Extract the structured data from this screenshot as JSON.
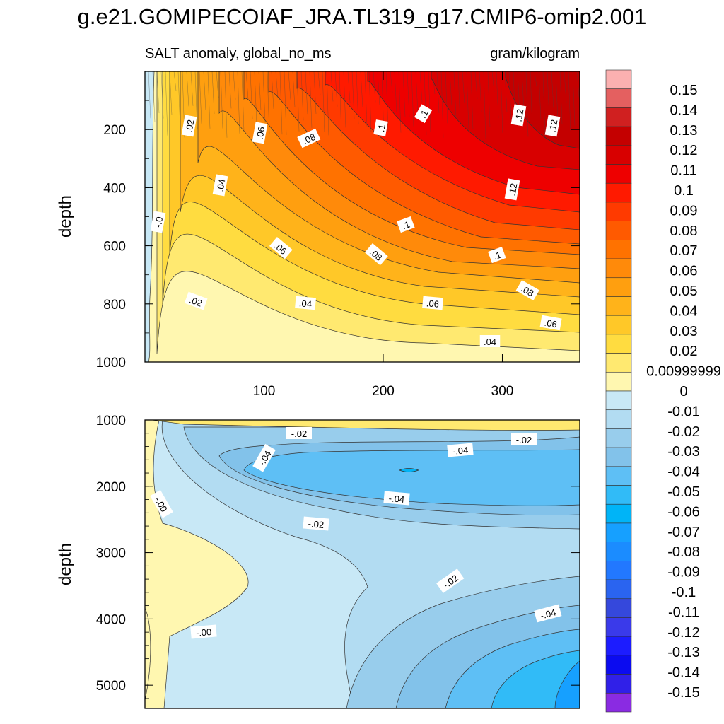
{
  "title": "g.e21.GOMIPECOIAF_JRA.TL319_g17.CMIP6-omip2.001",
  "subtitle_left": "SALT anomaly, global_no_ms",
  "subtitle_right": "gram/kilogram",
  "colors": {
    "positive": [
      "#fff7b0",
      "#ffe970",
      "#ffdc40",
      "#ffc828",
      "#ffb31a",
      "#ff9f0f",
      "#ff8a0a",
      "#ff7200",
      "#ff5a00",
      "#ff3a00",
      "#ff1a00",
      "#ee0000",
      "#d80000",
      "#c40000",
      "#d02020",
      "#e46060",
      "#fbb0b0"
    ],
    "negative": [
      "#c8e8f6",
      "#b2dcf2",
      "#98cdec",
      "#82c2ea",
      "#5ebff5",
      "#31bbf7",
      "#00b4f7",
      "#16a0ff",
      "#1b8cff",
      "#2278ff",
      "#2a64f0",
      "#3548dc",
      "#3a3aea",
      "#1c1cff",
      "#0b0bf0",
      "#3020e8",
      "#6020e0",
      "#8a2be2"
    ]
  },
  "chart_data": [
    {
      "type": "contour",
      "panel": "upper",
      "ylabel": "depth",
      "xlim": [
        0,
        365
      ],
      "ylim": [
        1000,
        0
      ],
      "xticks": [
        "100",
        "200",
        "300"
      ],
      "yticks": [
        "200",
        "400",
        "600",
        "800",
        "1000"
      ],
      "contour_labels": [
        ".02",
        ".06",
        ".08",
        ".1",
        ".1",
        ".12",
        ".12",
        ".04",
        ".12",
        "-.0",
        ".1",
        ".06",
        ".08",
        ".1",
        ".02",
        ".04",
        ".06",
        ".08",
        ".06",
        ".04"
      ]
    },
    {
      "type": "contour",
      "panel": "lower",
      "ylabel": "depth",
      "xlim": [
        0,
        365
      ],
      "ylim": [
        5350,
        1000
      ],
      "yticks": [
        "1000",
        "2000",
        "3000",
        "4000",
        "5000"
      ],
      "contour_labels": [
        "-.02",
        "-.04",
        "-.04",
        "-.02",
        "-.00",
        "-.04",
        "-.02",
        "-.02",
        "-.04",
        "-.00"
      ]
    }
  ],
  "colorbar": {
    "labels": [
      "0.15",
      "0.14",
      "0.13",
      "0.12",
      "0.11",
      "0.1",
      "0.09",
      "0.08",
      "0.07",
      "0.06",
      "0.05",
      "0.04",
      "0.03",
      "0.02",
      "0.00999999",
      "0",
      "-0.01",
      "-0.02",
      "-0.03",
      "-0.04",
      "-0.05",
      "-0.06",
      "-0.07",
      "-0.08",
      "-0.09",
      "-0.1",
      "-0.11",
      "-0.12",
      "-0.13",
      "-0.14",
      "-0.15"
    ],
    "box_colors": [
      "#fbb0b0",
      "#e46060",
      "#d02020",
      "#c40000",
      "#d80000",
      "#ee0000",
      "#ff1a00",
      "#ff3a00",
      "#ff5a00",
      "#ff7200",
      "#ff8a0a",
      "#ff9f0f",
      "#ffb31a",
      "#ffc828",
      "#ffdc40",
      "#ffe970",
      "#fff7b0",
      "#c8e8f6",
      "#b2dcf2",
      "#98cdec",
      "#82c2ea",
      "#5ebff5",
      "#31bbf7",
      "#00b4f7",
      "#16a0ff",
      "#1b8cff",
      "#2278ff",
      "#2a64f0",
      "#3548dc",
      "#3a3aea",
      "#1c1cff",
      "#0b0bf0",
      "#3020e8",
      "#8a2be2"
    ]
  }
}
